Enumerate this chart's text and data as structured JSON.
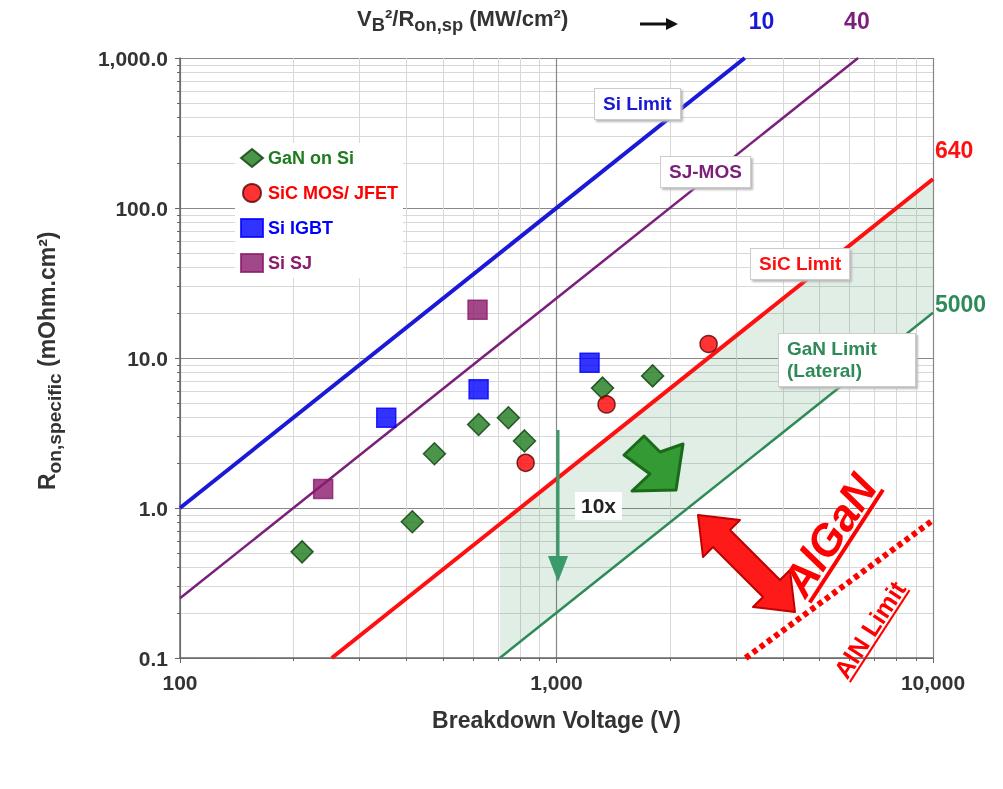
{
  "chart_data": {
    "type": "scatter",
    "xlabel": "Breakdown Voltage (V)",
    "ylabel": "R$_{on,specific}$ (mOhm.cm²)",
    "log": "xy",
    "grid": true,
    "legend": "top left",
    "xlim": [
      100,
      10000
    ],
    "xticks": [
      {
        "value": 100,
        "label": "100"
      },
      {
        "value": 1000,
        "label": "1,000"
      },
      {
        "value": 10000,
        "label": "10,000"
      }
    ],
    "ylim": [
      0.1,
      1000
    ],
    "yticks": [
      {
        "value": 0.1,
        "label": "0.1"
      },
      {
        "value": 1,
        "label": "1.0"
      },
      {
        "value": 10,
        "label": "10.0"
      },
      {
        "value": 100,
        "label": "100.0"
      },
      {
        "value": 1000,
        "label": "1,000.0"
      }
    ],
    "series": [
      {
        "name": "GaN on Si",
        "marker": "diamond",
        "color": "#1e7b1e",
        "x": [
          211,
          414,
          474,
          621,
          745,
          822,
          1325,
          1800
        ],
        "values": [
          0.51,
          0.81,
          2.3,
          3.6,
          4.0,
          2.8,
          6.3,
          7.6
        ]
      },
      {
        "name": "SiC MOS/ JFET",
        "marker": "circle",
        "color": "#ff0000",
        "x": [
          828,
          1358,
          2535
        ],
        "values": [
          2.0,
          4.9,
          12.4
        ]
      },
      {
        "name": "Si IGBT",
        "marker": "square",
        "color": "#0000ff",
        "x": [
          353,
          621,
          1224
        ],
        "values": [
          4.0,
          6.2,
          9.3
        ]
      },
      {
        "name": "Si SJ",
        "marker": "square",
        "color": "#8b1a6b",
        "x": [
          240,
          617
        ],
        "values": [
          1.34,
          21
        ]
      },
      {
        "name": "Si Limit",
        "type": "line",
        "marker": "none",
        "line_style": "solid",
        "color": "#1a1ad6",
        "x": [
          100,
          3162
        ],
        "values": [
          1,
          1000
        ]
      },
      {
        "name": "SJ-MOS",
        "type": "line",
        "marker": "none",
        "line_style": "solid",
        "color": "#7a1f7a",
        "x": [
          100,
          6325
        ],
        "values": [
          0.25,
          1000
        ]
      },
      {
        "name": "SiC Limit",
        "type": "line",
        "marker": "none",
        "line_style": "solid",
        "color": "#ff1010",
        "x": [
          253,
          10000
        ],
        "values": [
          0.1,
          156
        ]
      },
      {
        "name": "GaN Limit (Lateral)",
        "type": "line",
        "marker": "none",
        "line_style": "solid",
        "color": "#2e8b57",
        "x": [
          707,
          10000
        ],
        "values": [
          0.1,
          20
        ],
        "lower": [
          0.1,
          20
        ],
        "upper": [
          0.78,
          156
        ]
      },
      {
        "name": "AlN Limit",
        "type": "line",
        "marker": "none",
        "line_style": "dashed",
        "color": "#ff0000",
        "x": [
          3180,
          10000
        ],
        "values": [
          0.1,
          0.83
        ]
      }
    ],
    "annotations": [
      "V$_{B}$²/R$_{on,sp}$ (MW/cm²)",
      {
        "text": "10",
        "x": 3162,
        "y": 1000
      },
      {
        "text": "40",
        "x": 6325,
        "y": 1000
      },
      {
        "text": "640",
        "x": 10000,
        "y": 156
      },
      {
        "text": "5000",
        "x": 10000,
        "y": 20
      },
      "10x",
      "AlGaN"
    ]
  }
}
